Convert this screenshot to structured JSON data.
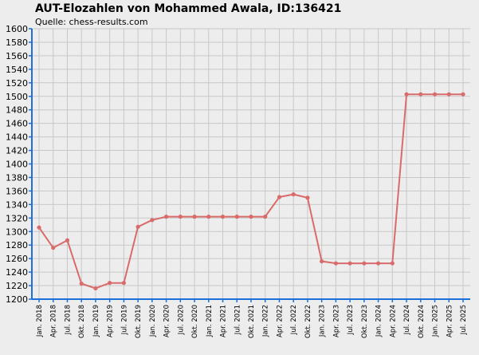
{
  "header": {
    "title": "AUT-Elozahlen von Mohammed Awala, ID:136421",
    "source": "Quelle: chess-results.com"
  },
  "colors": {
    "background": "#ededed",
    "plot_background": "#ededed",
    "grid": "#c8c8c8",
    "axis": "#1e6fd9",
    "series": "#d96b6b"
  },
  "chart_data": {
    "type": "line",
    "title": "AUT-Elozahlen von Mohammed Awala, ID:136421",
    "subtitle": "Quelle: chess-results.com",
    "xlabel": "",
    "ylabel": "",
    "ylim": [
      1200,
      1600
    ],
    "yticks": [
      1200,
      1220,
      1240,
      1260,
      1280,
      1300,
      1320,
      1340,
      1360,
      1380,
      1400,
      1420,
      1440,
      1460,
      1480,
      1500,
      1520,
      1540,
      1560,
      1580,
      1600
    ],
    "grid": true,
    "legend": "none",
    "categories": [
      "Jan. 2018",
      "Apr. 2018",
      "Jul. 2018",
      "Okt. 2018",
      "Jan. 2019",
      "Apr. 2019",
      "Jul. 2019",
      "Okt. 2019",
      "Jan. 2020",
      "Apr. 2020",
      "Jul. 2020",
      "Okt. 2020",
      "Jan. 2021",
      "Apr. 2021",
      "Jul. 2021",
      "Okt. 2021",
      "Jan. 2022",
      "Apr. 2022",
      "Jul. 2022",
      "Okt. 2022",
      "Jan. 2023",
      "Apr. 2023",
      "Jul. 2023",
      "Okt. 2023",
      "Jan. 2024",
      "Apr. 2024",
      "Jul. 2024",
      "Okt. 2024",
      "Jan. 2025",
      "Apr. 2025",
      "Jul. 2025"
    ],
    "values": [
      1306,
      1276,
      1287,
      1223,
      1216,
      1224,
      1224,
      1307,
      1317,
      1322,
      1322,
      1322,
      1322,
      1322,
      1322,
      1322,
      1322,
      1351,
      1355,
      1350,
      1256,
      1253,
      1253,
      1253,
      1253,
      1253,
      1503,
      1503,
      1503,
      1503,
      1503
    ]
  }
}
